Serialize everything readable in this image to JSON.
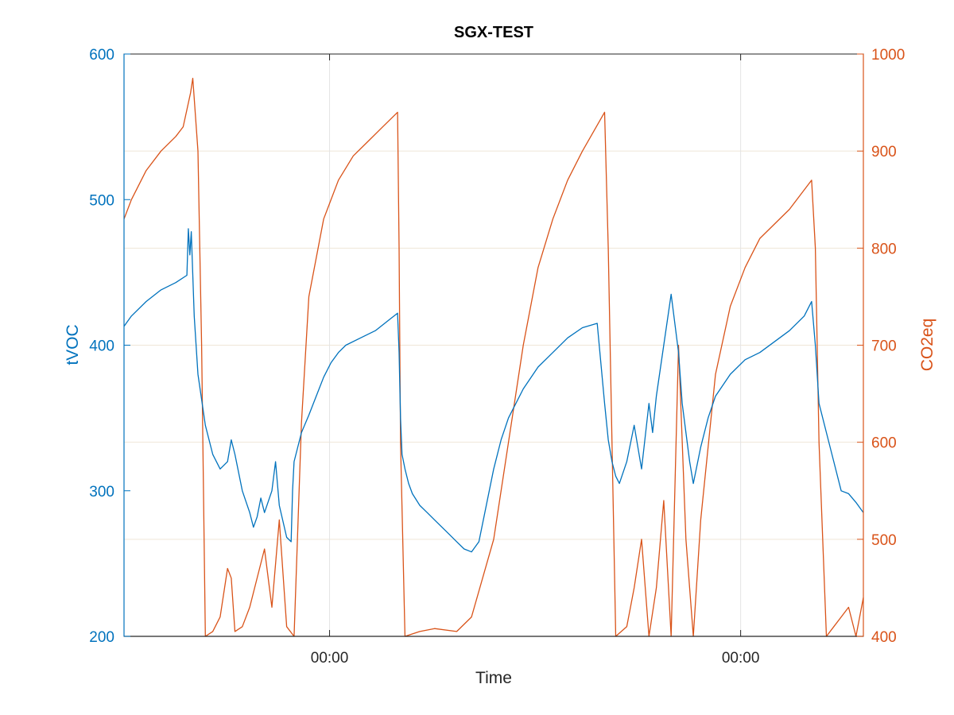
{
  "chart_data": {
    "type": "line",
    "title": "SGX-TEST",
    "xlabel": "Time",
    "x_tick_labels": [
      "00:00",
      "00:00"
    ],
    "x_tick_positions": [
      0.278,
      0.834
    ],
    "grid": true,
    "left_axis": {
      "label": "tVOC",
      "ylim": [
        200,
        600
      ],
      "ticks": [
        200,
        300,
        400,
        500,
        600
      ],
      "tick_labels": [
        "200",
        "300",
        "400",
        "500",
        "600"
      ],
      "color": "#0072bd"
    },
    "right_axis": {
      "label": "CO2eq",
      "ylim": [
        400,
        1000
      ],
      "ticks": [
        400,
        500,
        600,
        700,
        800,
        900,
        1000
      ],
      "tick_labels": [
        "400",
        "500",
        "600",
        "700",
        "800",
        "900",
        "1000"
      ],
      "color": "#d95319"
    },
    "series": [
      {
        "name": "tVOC",
        "axis": "left",
        "color": "#0072bd",
        "x": [
          0.0,
          0.01,
          0.03,
          0.05,
          0.07,
          0.085,
          0.087,
          0.089,
          0.091,
          0.095,
          0.1,
          0.11,
          0.12,
          0.13,
          0.14,
          0.145,
          0.15,
          0.16,
          0.17,
          0.175,
          0.18,
          0.185,
          0.19,
          0.2,
          0.205,
          0.21,
          0.22,
          0.226,
          0.228,
          0.23,
          0.24,
          0.25,
          0.26,
          0.27,
          0.28,
          0.29,
          0.3,
          0.32,
          0.34,
          0.36,
          0.37,
          0.372,
          0.374,
          0.376,
          0.38,
          0.385,
          0.39,
          0.4,
          0.41,
          0.42,
          0.43,
          0.44,
          0.45,
          0.46,
          0.47,
          0.48,
          0.49,
          0.5,
          0.51,
          0.52,
          0.54,
          0.56,
          0.58,
          0.6,
          0.62,
          0.64,
          0.65,
          0.655,
          0.66,
          0.665,
          0.67,
          0.68,
          0.69,
          0.7,
          0.71,
          0.715,
          0.72,
          0.73,
          0.74,
          0.75,
          0.755,
          0.76,
          0.765,
          0.77,
          0.78,
          0.79,
          0.8,
          0.82,
          0.84,
          0.86,
          0.9,
          0.92,
          0.93,
          0.935,
          0.94,
          0.95,
          0.96,
          0.97,
          0.98,
          0.99,
          1.0
        ],
        "y": [
          413,
          420,
          430,
          438,
          443,
          448,
          480,
          462,
          478,
          420,
          380,
          345,
          325,
          315,
          320,
          335,
          325,
          300,
          285,
          275,
          282,
          295,
          285,
          300,
          320,
          290,
          268,
          265,
          300,
          320,
          340,
          352,
          365,
          378,
          388,
          395,
          400,
          405,
          410,
          418,
          422,
          395,
          350,
          325,
          315,
          305,
          298,
          290,
          285,
          280,
          275,
          270,
          265,
          260,
          258,
          265,
          290,
          315,
          335,
          350,
          370,
          385,
          395,
          405,
          412,
          415,
          360,
          335,
          320,
          310,
          305,
          320,
          345,
          315,
          360,
          340,
          365,
          400,
          435,
          395,
          360,
          340,
          320,
          305,
          330,
          350,
          365,
          380,
          390,
          395,
          410,
          420,
          430,
          400,
          360,
          340,
          320,
          300,
          298,
          292,
          285
        ]
      },
      {
        "name": "CO2eq",
        "axis": "right",
        "color": "#d95319",
        "x": [
          0.0,
          0.01,
          0.03,
          0.05,
          0.07,
          0.08,
          0.09,
          0.093,
          0.1,
          0.105,
          0.11,
          0.12,
          0.13,
          0.14,
          0.145,
          0.15,
          0.16,
          0.17,
          0.19,
          0.2,
          0.21,
          0.22,
          0.23,
          0.24,
          0.25,
          0.27,
          0.29,
          0.31,
          0.33,
          0.35,
          0.37,
          0.372,
          0.374,
          0.38,
          0.4,
          0.42,
          0.45,
          0.47,
          0.5,
          0.52,
          0.54,
          0.56,
          0.58,
          0.6,
          0.62,
          0.65,
          0.655,
          0.66,
          0.665,
          0.68,
          0.69,
          0.7,
          0.71,
          0.72,
          0.73,
          0.74,
          0.75,
          0.76,
          0.77,
          0.78,
          0.8,
          0.82,
          0.84,
          0.86,
          0.9,
          0.92,
          0.93,
          0.935,
          0.94,
          0.95,
          0.96,
          0.97,
          0.98,
          0.99,
          1.0
        ],
        "y": [
          830,
          850,
          880,
          900,
          915,
          925,
          960,
          975,
          900,
          700,
          400,
          405,
          420,
          470,
          460,
          405,
          410,
          430,
          490,
          430,
          520,
          410,
          400,
          620,
          750,
          830,
          870,
          895,
          910,
          925,
          940,
          800,
          600,
          400,
          405,
          408,
          405,
          420,
          500,
          600,
          700,
          780,
          830,
          870,
          900,
          940,
          800,
          600,
          400,
          410,
          450,
          500,
          400,
          450,
          540,
          400,
          700,
          500,
          400,
          520,
          670,
          740,
          780,
          810,
          840,
          860,
          870,
          800,
          600,
          400,
          410,
          420,
          430,
          400,
          440
        ]
      }
    ]
  }
}
